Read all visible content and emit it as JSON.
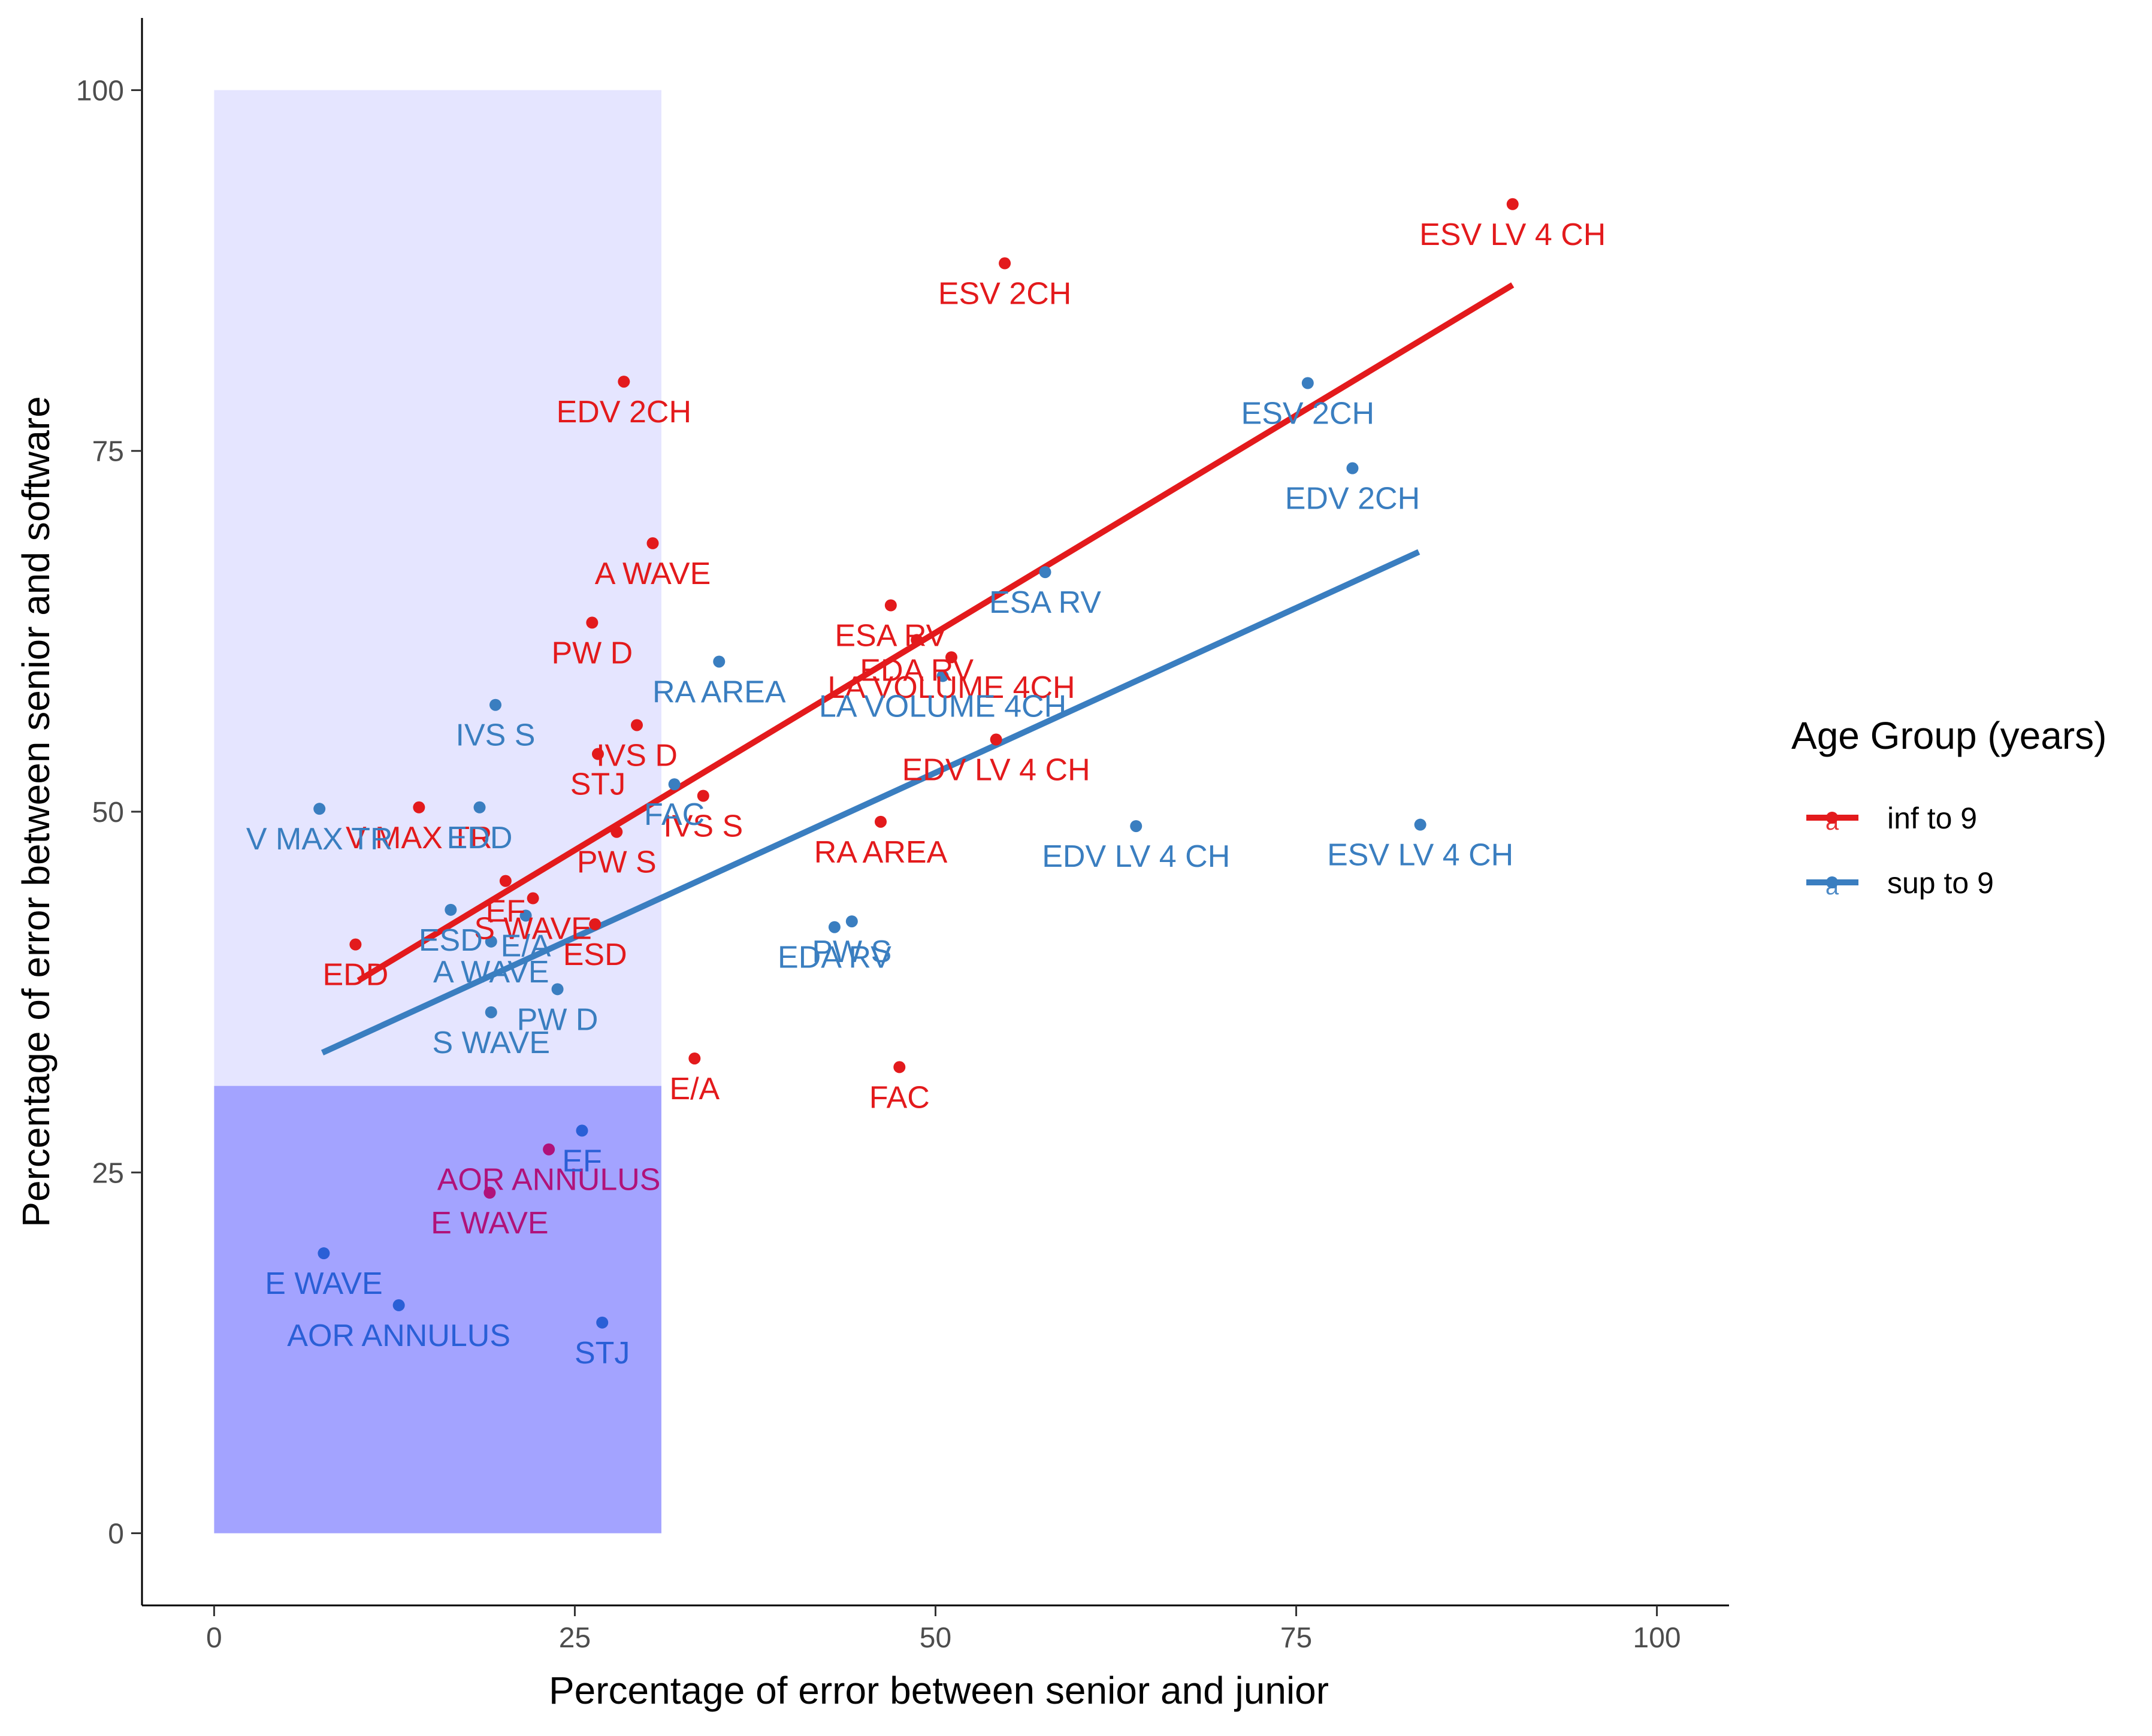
{
  "chart_data": {
    "type": "scatter",
    "title": "",
    "xlabel": "Percentage of error between senior and junior",
    "ylabel": "Percentage of error between senior and software",
    "xlim": [
      -5,
      105
    ],
    "ylim": [
      -5,
      105
    ],
    "xticks": [
      0,
      25,
      50,
      75,
      100
    ],
    "yticks": [
      0,
      25,
      50,
      75,
      100
    ],
    "grid": false,
    "regions": [
      {
        "name": "light-region",
        "x": [
          0,
          31
        ],
        "y": [
          31,
          100
        ],
        "color": "#e5e5ff"
      },
      {
        "name": "dark-region",
        "x": [
          0,
          31
        ],
        "y": [
          0,
          31
        ],
        "color": "#a3a3ff"
      }
    ],
    "legend": {
      "title": "Age Group (years)",
      "position": "right",
      "entries": [
        {
          "label": "inf to 9",
          "color": "#e31a1c"
        },
        {
          "label": "sup to 9",
          "color": "#3a7ec0"
        }
      ]
    },
    "series": [
      {
        "name": "inf to 9",
        "color": "#e31a1c",
        "trend": {
          "x": [
            10,
            90
          ],
          "y": [
            38.3,
            86.5
          ]
        },
        "points": [
          {
            "label": "ESV LV 4 CH",
            "x": 90.0,
            "y": 92.1
          },
          {
            "label": "ESV 2CH",
            "x": 54.8,
            "y": 88.0
          },
          {
            "label": "EDV 2CH",
            "x": 28.4,
            "y": 79.8
          },
          {
            "label": "A WAVE",
            "x": 30.4,
            "y": 68.6
          },
          {
            "label": "PW D",
            "x": 26.2,
            "y": 63.1
          },
          {
            "label": "ESA RV",
            "x": 46.9,
            "y": 64.3
          },
          {
            "label": "EDA RV",
            "x": 48.7,
            "y": 61.9
          },
          {
            "label": "LA VOLUME 4CH",
            "x": 51.1,
            "y": 60.7
          },
          {
            "label": "IVS D",
            "x": 29.3,
            "y": 56.0
          },
          {
            "label": "STJ",
            "x": 26.6,
            "y": 54.0
          },
          {
            "label": "EDV LV 4 CH",
            "x": 54.2,
            "y": 55.0
          },
          {
            "label": "IVS S",
            "x": 33.9,
            "y": 51.1
          },
          {
            "label": "V MAX TR",
            "x": 14.2,
            "y": 50.3
          },
          {
            "label": "PW S",
            "x": 27.9,
            "y": 48.6
          },
          {
            "label": "RA AREA",
            "x": 46.2,
            "y": 49.3
          },
          {
            "label": "EF",
            "x": 20.2,
            "y": 45.2
          },
          {
            "label": "S WAVE",
            "x": 22.1,
            "y": 44.0
          },
          {
            "label": "ESD",
            "x": 26.4,
            "y": 42.2
          },
          {
            "label": "EDD",
            "x": 9.8,
            "y": 40.8
          },
          {
            "label": "E/A",
            "x": 33.3,
            "y": 32.9
          },
          {
            "label": "FAC",
            "x": 47.5,
            "y": 32.3
          },
          {
            "label": "AOR ANNULUS",
            "x": 23.2,
            "y": 26.6
          },
          {
            "label": "E WAVE",
            "x": 19.1,
            "y": 23.6
          }
        ]
      },
      {
        "name": "sup to 9",
        "color": "#3a7ec0",
        "trend": {
          "x": [
            7.5,
            83.5
          ],
          "y": [
            33.3,
            68.0
          ]
        },
        "points": [
          {
            "label": "ESV 2CH",
            "x": 75.8,
            "y": 79.7
          },
          {
            "label": "EDV 2CH",
            "x": 78.9,
            "y": 73.8
          },
          {
            "label": "ESA RV",
            "x": 57.6,
            "y": 66.6
          },
          {
            "label": "RA AREA",
            "x": 35.0,
            "y": 60.4
          },
          {
            "label": "LA VOLUME 4CH",
            "x": 50.5,
            "y": 59.4
          },
          {
            "label": "IVS S",
            "x": 19.5,
            "y": 57.4
          },
          {
            "label": "FAC",
            "x": 31.9,
            "y": 51.9
          },
          {
            "label": "V MAX TR",
            "x": 7.3,
            "y": 50.2
          },
          {
            "label": "EDD",
            "x": 18.4,
            "y": 50.3
          },
          {
            "label": "EDV LV 4 CH",
            "x": 63.9,
            "y": 49.0
          },
          {
            "label": "ESV LV 4 CH",
            "x": 83.6,
            "y": 49.1
          },
          {
            "label": "ESD",
            "x": 16.4,
            "y": 43.2
          },
          {
            "label": "E/A",
            "x": 21.6,
            "y": 42.8
          },
          {
            "label": "A WAVE",
            "x": 19.2,
            "y": 41.0
          },
          {
            "label": "PW S",
            "x": 44.2,
            "y": 42.4
          },
          {
            "label": "EDA RV",
            "x": 43.0,
            "y": 42.0
          },
          {
            "label": "PW D",
            "x": 23.8,
            "y": 37.7
          },
          {
            "label": "S WAVE",
            "x": 19.2,
            "y": 36.1
          },
          {
            "label": "EF",
            "x": 25.5,
            "y": 27.9
          },
          {
            "label": "E WAVE",
            "x": 7.6,
            "y": 19.4
          },
          {
            "label": "AOR ANNULUS",
            "x": 12.8,
            "y": 15.8
          },
          {
            "label": "STJ",
            "x": 26.9,
            "y": 14.6
          }
        ]
      }
    ]
  }
}
